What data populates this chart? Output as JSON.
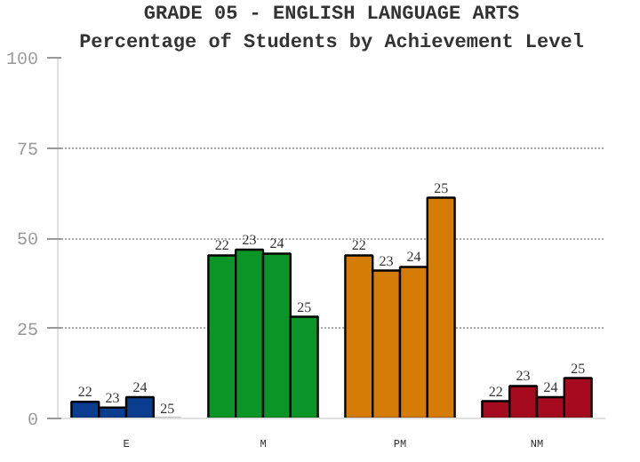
{
  "chart_data": {
    "type": "bar",
    "title": "GRADE 05 - ENGLISH LANGUAGE ARTS",
    "subtitle": "Percentage of Students by Achievement Level",
    "categories": [
      "E",
      "M",
      "PM",
      "NM"
    ],
    "series": [
      {
        "name": "22",
        "colors": [
          "#0a3d8f",
          "#0a9626",
          "#d57c07",
          "#a50a1e"
        ],
        "values": [
          4.6,
          45.2,
          45.2,
          4.8
        ]
      },
      {
        "name": "23",
        "colors": [
          "#0a3d8f",
          "#0a9626",
          "#d57c07",
          "#a50a1e"
        ],
        "values": [
          3.0,
          46.8,
          41.0,
          9.0
        ]
      },
      {
        "name": "24",
        "colors": [
          "#0a3d8f",
          "#0a9626",
          "#d57c07",
          "#a50a1e"
        ],
        "values": [
          5.9,
          45.7,
          42.0,
          5.9
        ]
      },
      {
        "name": "25",
        "colors": [
          "#0a3d8f",
          "#0a9626",
          "#d57c07",
          "#a50a1e"
        ],
        "values": [
          null,
          28.2,
          61.2,
          11.2
        ]
      }
    ],
    "ylim": [
      0,
      100
    ],
    "yticks": [
      0,
      25,
      50,
      75,
      100
    ],
    "grid": "y"
  }
}
